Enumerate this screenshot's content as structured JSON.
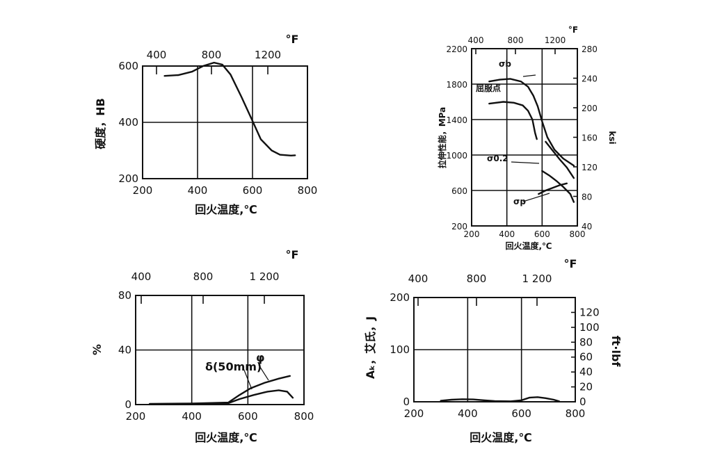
{
  "chart_data": [
    {
      "id": "hardness",
      "type": "line",
      "xlabel": "回火温度,℃",
      "ylabel": "硬度，HB",
      "top_unit": "°F",
      "xlim": [
        200,
        800
      ],
      "ylim": [
        200,
        600
      ],
      "x_ticks": [
        "200",
        "400",
        "600",
        "800"
      ],
      "y_ticks": [
        "200",
        "400",
        "600"
      ],
      "top_ticks": [
        "400",
        "800",
        "1200"
      ],
      "grid_x": [
        400,
        600
      ],
      "grid_y": [
        400
      ],
      "series": [
        {
          "points": [
            [
              280,
              565
            ],
            [
              330,
              568
            ],
            [
              380,
              580
            ],
            [
              420,
              600
            ],
            [
              460,
              612
            ],
            [
              490,
              605
            ],
            [
              520,
              570
            ],
            [
              560,
              490
            ],
            [
              600,
              405
            ],
            [
              630,
              340
            ],
            [
              670,
              300
            ],
            [
              700,
              285
            ],
            [
              740,
              282
            ],
            [
              755,
              283
            ]
          ]
        }
      ]
    },
    {
      "id": "tensile",
      "type": "line",
      "xlabel": "回火温度,℃",
      "ylabel": "拉伸性能，MPa",
      "y2label": "ksi",
      "top_unit": "°F",
      "xlim": [
        200,
        800
      ],
      "ylim": [
        200,
        2200
      ],
      "y2lim": [
        40,
        280
      ],
      "x_ticks": [
        "200",
        "400",
        "600",
        "800"
      ],
      "y_ticks": [
        "200",
        "600",
        "1000",
        "1400",
        "1800",
        "2200"
      ],
      "y2_ticks": [
        "40",
        "80",
        "120",
        "160",
        "200",
        "240",
        "280"
      ],
      "top_ticks": [
        "400",
        "800",
        "1200"
      ],
      "grid_x": [
        400,
        600
      ],
      "grid_y": [
        600,
        1000,
        1400,
        1800
      ],
      "annotations": [
        "σb",
        "屈服点",
        "σ0.2",
        "σp"
      ],
      "series": [
        {
          "label": "σb",
          "points": [
            [
              300,
              1830
            ],
            [
              360,
              1850
            ],
            [
              420,
              1860
            ],
            [
              480,
              1830
            ],
            [
              520,
              1770
            ],
            [
              550,
              1670
            ],
            [
              575,
              1550
            ],
            [
              600,
              1380
            ],
            [
              630,
              1200
            ],
            [
              670,
              1060
            ],
            [
              720,
              960
            ],
            [
              780,
              880
            ]
          ]
        },
        {
          "label": "屈服点",
          "points": [
            [
              300,
              1580
            ],
            [
              380,
              1600
            ],
            [
              440,
              1590
            ],
            [
              490,
              1560
            ],
            [
              520,
              1500
            ],
            [
              545,
              1400
            ],
            [
              560,
              1250
            ],
            [
              570,
              1180
            ]
          ]
        },
        {
          "label": "σ0.2",
          "points": [
            [
              620,
              1150
            ],
            [
              660,
              1050
            ],
            [
              700,
              950
            ],
            [
              740,
              860
            ],
            [
              780,
              740
            ]
          ]
        },
        {
          "label": "σp",
          "points": [
            [
              580,
              560
            ],
            [
              620,
              600
            ],
            [
              660,
              630
            ],
            [
              700,
              660
            ],
            [
              740,
              680
            ]
          ]
        },
        {
          "points": [
            [
              600,
              820
            ],
            [
              640,
              770
            ],
            [
              680,
              710
            ],
            [
              720,
              640
            ],
            [
              760,
              560
            ],
            [
              780,
              470
            ]
          ]
        }
      ]
    },
    {
      "id": "elongation",
      "type": "line",
      "xlabel": "回火温度,℃",
      "ylabel": "%",
      "top_unit": "°F",
      "xlim": [
        200,
        800
      ],
      "ylim": [
        0,
        80
      ],
      "x_ticks": [
        "200",
        "400",
        "600",
        "800"
      ],
      "y_ticks": [
        "0",
        "40",
        "80"
      ],
      "top_ticks": [
        "400",
        "800",
        "1 200"
      ],
      "grid_x": [
        400,
        600
      ],
      "grid_y": [
        40
      ],
      "annotations": [
        "δ(50mm)",
        "φ"
      ],
      "series": [
        {
          "label": "φ",
          "points": [
            [
              250,
              0.5
            ],
            [
              400,
              0.8
            ],
            [
              530,
              1.5
            ],
            [
              570,
              7
            ],
            [
              610,
              12
            ],
            [
              660,
              16
            ],
            [
              710,
              19
            ],
            [
              750,
              21
            ]
          ]
        },
        {
          "label": "δ(50mm)",
          "points": [
            [
              250,
              0.3
            ],
            [
              400,
              0.5
            ],
            [
              530,
              1
            ],
            [
              570,
              4
            ],
            [
              620,
              7
            ],
            [
              670,
              9.5
            ],
            [
              710,
              10.5
            ],
            [
              740,
              9.5
            ],
            [
              760,
              5
            ]
          ]
        }
      ]
    },
    {
      "id": "impact",
      "type": "line",
      "xlabel": "回火温度,℃",
      "ylabel": "Aₖ，艾氏，J",
      "y2label": "ft·lbf",
      "top_unit": "°F",
      "xlim": [
        200,
        800
      ],
      "ylim": [
        0,
        200
      ],
      "y2lim": [
        0,
        140
      ],
      "x_ticks": [
        "200",
        "400",
        "600",
        "800"
      ],
      "y_ticks": [
        "0",
        "100",
        "200"
      ],
      "y2_ticks": [
        "0",
        "20",
        "40",
        "60",
        "80",
        "100",
        "120"
      ],
      "top_ticks": [
        "400",
        "800",
        "1 200"
      ],
      "grid_x": [
        400,
        600
      ],
      "grid_y": [
        100
      ],
      "series": [
        {
          "points": [
            [
              300,
              2
            ],
            [
              340,
              4
            ],
            [
              380,
              5
            ],
            [
              420,
              4.5
            ],
            [
              460,
              3
            ],
            [
              500,
              1.5
            ],
            [
              560,
              1
            ],
            [
              600,
              3
            ],
            [
              630,
              8
            ],
            [
              660,
              9
            ],
            [
              690,
              7
            ],
            [
              720,
              4
            ],
            [
              740,
              1
            ]
          ]
        }
      ]
    }
  ]
}
